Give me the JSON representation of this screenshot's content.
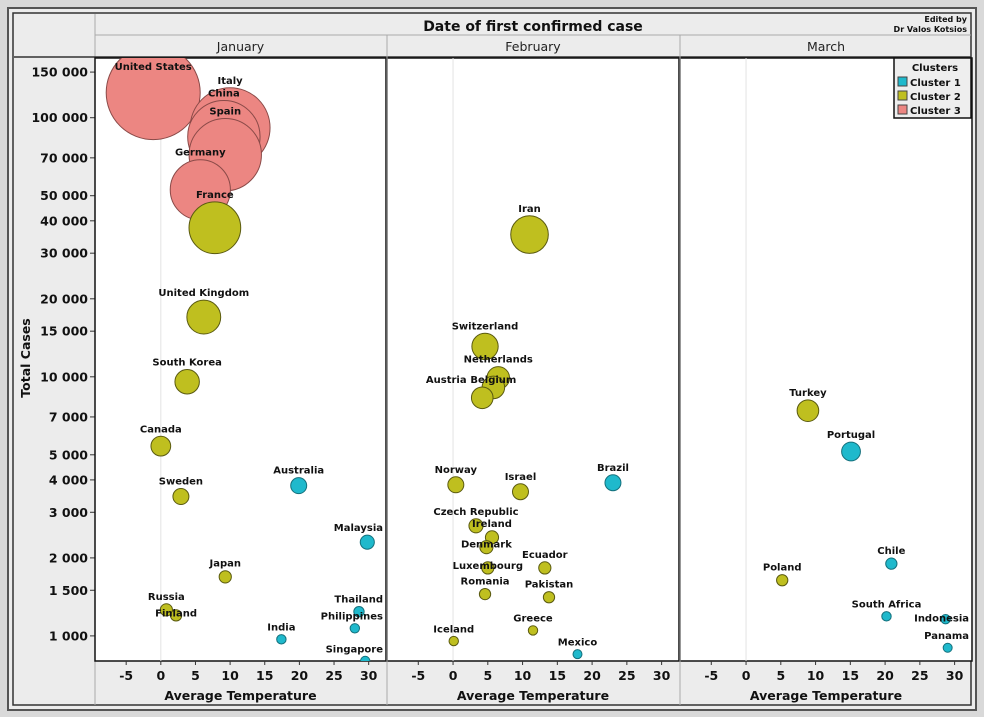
{
  "chart_data": {
    "type": "scatter",
    "subtype": "bubble",
    "title": "Date of first confirmed case",
    "credit": [
      "Edited by",
      "Dr Valos Kotsios"
    ],
    "xlabel": "Average Temperature",
    "ylabel": "Total Cases",
    "yscale": "log",
    "xlim": [
      -9.5,
      32.5
    ],
    "ylim": [
      800,
      170000
    ],
    "x_ticks": [
      -5,
      0,
      5,
      10,
      15,
      20,
      25,
      30
    ],
    "y_ticks": [
      {
        "value": 150000,
        "label": "150 000"
      },
      {
        "value": 100000,
        "label": "100 000"
      },
      {
        "value": 70000,
        "label": "70 000"
      },
      {
        "value": 50000,
        "label": "50 000"
      },
      {
        "value": 40000,
        "label": "40 000"
      },
      {
        "value": 30000,
        "label": "30 000"
      },
      {
        "value": 20000,
        "label": "20 000"
      },
      {
        "value": 15000,
        "label": "15 000"
      },
      {
        "value": 10000,
        "label": "10 000"
      },
      {
        "value": 7000,
        "label": "7 000"
      },
      {
        "value": 5000,
        "label": "5 000"
      },
      {
        "value": 4000,
        "label": "4 000"
      },
      {
        "value": 3000,
        "label": "3 000"
      },
      {
        "value": 2000,
        "label": "2 000"
      },
      {
        "value": 1500,
        "label": "1 500"
      },
      {
        "value": 1000,
        "label": "1 000"
      }
    ],
    "panels": [
      "January",
      "February",
      "March"
    ],
    "legend": {
      "title": "Clusters",
      "position": "top-right",
      "entries": [
        {
          "name": "Cluster 1",
          "color": "#1fb9cc"
        },
        {
          "name": "Cluster 2",
          "color": "#bfbf1f"
        },
        {
          "name": "Cluster 3",
          "color": "#ec8682"
        }
      ]
    },
    "points": [
      {
        "name": "United States",
        "panel": "January",
        "x": -1.1,
        "y": 125000,
        "cluster": 3,
        "size": 100
      },
      {
        "name": "Italy",
        "panel": "January",
        "x": 10.0,
        "y": 91500,
        "cluster": 3,
        "size": 85
      },
      {
        "name": "China",
        "panel": "January",
        "x": 9.1,
        "y": 84500,
        "cluster": 3,
        "size": 77
      },
      {
        "name": "Spain",
        "panel": "January",
        "x": 9.3,
        "y": 72000,
        "cluster": 3,
        "size": 77
      },
      {
        "name": "Germany",
        "panel": "January",
        "x": 5.7,
        "y": 52700,
        "cluster": 3,
        "size": 64
      },
      {
        "name": "France",
        "panel": "January",
        "x": 7.8,
        "y": 37600,
        "cluster": 2,
        "size": 55
      },
      {
        "name": "United Kingdom",
        "panel": "January",
        "x": 6.2,
        "y": 17000,
        "cluster": 2,
        "size": 36
      },
      {
        "name": "South Korea",
        "panel": "January",
        "x": 3.8,
        "y": 9570,
        "cluster": 2,
        "size": 26
      },
      {
        "name": "Canada",
        "panel": "January",
        "x": 0.0,
        "y": 5400,
        "cluster": 2,
        "size": 21
      },
      {
        "name": "Sweden",
        "panel": "January",
        "x": 2.9,
        "y": 3450,
        "cluster": 2,
        "size": 17
      },
      {
        "name": "Australia",
        "panel": "January",
        "x": 19.9,
        "y": 3800,
        "cluster": 1,
        "size": 17
      },
      {
        "name": "Malaysia",
        "panel": "January",
        "x": 29.8,
        "y": 2300,
        "cluster": 1,
        "size": 15
      },
      {
        "name": "Japan",
        "panel": "January",
        "x": 9.3,
        "y": 1690,
        "cluster": 2,
        "size": 13
      },
      {
        "name": "Russia",
        "panel": "January",
        "x": 0.8,
        "y": 1260,
        "cluster": 2,
        "size": 13
      },
      {
        "name": "Finland",
        "panel": "January",
        "x": 2.2,
        "y": 1200,
        "cluster": 2,
        "size": 12
      },
      {
        "name": "Thailand",
        "panel": "January",
        "x": 28.6,
        "y": 1240,
        "cluster": 1,
        "size": 11
      },
      {
        "name": "Philippines",
        "panel": "January",
        "x": 28.0,
        "y": 1070,
        "cluster": 1,
        "size": 10
      },
      {
        "name": "India",
        "panel": "January",
        "x": 17.4,
        "y": 970,
        "cluster": 1,
        "size": 10
      },
      {
        "name": "Singapore",
        "panel": "January",
        "x": 29.5,
        "y": 800,
        "cluster": 1,
        "size": 10
      },
      {
        "name": "Iran",
        "panel": "February",
        "x": 11.0,
        "y": 35400,
        "cluster": 2,
        "size": 40
      },
      {
        "name": "Switzerland",
        "panel": "February",
        "x": 4.6,
        "y": 13100,
        "cluster": 2,
        "size": 28
      },
      {
        "name": "Netherlands",
        "panel": "February",
        "x": 6.5,
        "y": 9900,
        "cluster": 2,
        "size": 24
      },
      {
        "name": "Belgium",
        "panel": "February",
        "x": 5.8,
        "y": 9100,
        "cluster": 2,
        "size": 24
      },
      {
        "name": "Austria",
        "panel": "February",
        "x": 4.2,
        "y": 8300,
        "cluster": 2,
        "size": 23
      },
      {
        "name": "Norway",
        "panel": "February",
        "x": 0.4,
        "y": 3830,
        "cluster": 2,
        "size": 17
      },
      {
        "name": "Israel",
        "panel": "February",
        "x": 9.7,
        "y": 3600,
        "cluster": 2,
        "size": 17
      },
      {
        "name": "Brazil",
        "panel": "February",
        "x": 23.0,
        "y": 3900,
        "cluster": 1,
        "size": 17
      },
      {
        "name": "Czech Republic",
        "panel": "February",
        "x": 3.3,
        "y": 2660,
        "cluster": 2,
        "size": 15
      },
      {
        "name": "Ireland",
        "panel": "February",
        "x": 5.6,
        "y": 2400,
        "cluster": 2,
        "size": 14
      },
      {
        "name": "Denmark",
        "panel": "February",
        "x": 4.8,
        "y": 2200,
        "cluster": 2,
        "size": 14
      },
      {
        "name": "Luxembourg",
        "panel": "February",
        "x": 5.0,
        "y": 1830,
        "cluster": 2,
        "size": 13
      },
      {
        "name": "Ecuador",
        "panel": "February",
        "x": 13.2,
        "y": 1830,
        "cluster": 2,
        "size": 13
      },
      {
        "name": "Romania",
        "panel": "February",
        "x": 4.6,
        "y": 1450,
        "cluster": 2,
        "size": 12
      },
      {
        "name": "Pakistan",
        "panel": "February",
        "x": 13.8,
        "y": 1410,
        "cluster": 2,
        "size": 12
      },
      {
        "name": "Greece",
        "panel": "February",
        "x": 11.5,
        "y": 1050,
        "cluster": 2,
        "size": 10
      },
      {
        "name": "Iceland",
        "panel": "February",
        "x": 0.1,
        "y": 955,
        "cluster": 2,
        "size": 10
      },
      {
        "name": "Mexico",
        "panel": "February",
        "x": 17.9,
        "y": 850,
        "cluster": 1,
        "size": 9
      },
      {
        "name": "Turkey",
        "panel": "March",
        "x": 8.9,
        "y": 7400,
        "cluster": 2,
        "size": 23
      },
      {
        "name": "Portugal",
        "panel": "March",
        "x": 15.1,
        "y": 5150,
        "cluster": 1,
        "size": 20
      },
      {
        "name": "Chile",
        "panel": "March",
        "x": 20.9,
        "y": 1900,
        "cluster": 1,
        "size": 12
      },
      {
        "name": "Poland",
        "panel": "March",
        "x": 5.2,
        "y": 1640,
        "cluster": 2,
        "size": 12
      },
      {
        "name": "South Africa",
        "panel": "March",
        "x": 20.2,
        "y": 1190,
        "cluster": 1,
        "size": 10
      },
      {
        "name": "Indonesia",
        "panel": "March",
        "x": 28.7,
        "y": 1160,
        "cluster": 1,
        "size": 10
      },
      {
        "name": "Panama",
        "panel": "March",
        "x": 29.0,
        "y": 900,
        "cluster": 1,
        "size": 9
      }
    ]
  }
}
